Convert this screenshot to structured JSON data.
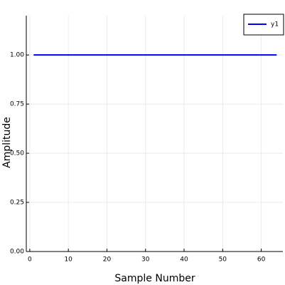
{
  "chart_data": {
    "type": "line",
    "x_label": "Sample Number",
    "y_label": "Amplitude",
    "x": [
      1,
      2,
      3,
      4,
      5,
      6,
      7,
      8,
      9,
      10,
      11,
      12,
      13,
      14,
      15,
      16,
      17,
      18,
      19,
      20,
      21,
      22,
      23,
      24,
      25,
      26,
      27,
      28,
      29,
      30,
      31,
      32,
      33,
      34,
      35,
      36,
      37,
      38,
      39,
      40,
      41,
      42,
      43,
      44,
      45,
      46,
      47,
      48,
      49,
      50,
      51,
      52,
      53,
      54,
      55,
      56,
      57,
      58,
      59,
      60,
      61,
      62,
      63,
      64
    ],
    "series": [
      {
        "name": "y1",
        "color": "#0000ff",
        "values": [
          1,
          1,
          1,
          1,
          1,
          1,
          1,
          1,
          1,
          1,
          1,
          1,
          1,
          1,
          1,
          1,
          1,
          1,
          1,
          1,
          1,
          1,
          1,
          1,
          1,
          1,
          1,
          1,
          1,
          1,
          1,
          1,
          1,
          1,
          1,
          1,
          1,
          1,
          1,
          1,
          1,
          1,
          1,
          1,
          1,
          1,
          1,
          1,
          1,
          1,
          1,
          1,
          1,
          1,
          1,
          1,
          1,
          1,
          1,
          1,
          1,
          1,
          1,
          1
        ]
      }
    ],
    "xlim": [
      -0.9,
      65.6
    ],
    "xticks": [
      0,
      10,
      20,
      30,
      40,
      50,
      60
    ],
    "ylim": [
      0,
      1.2
    ],
    "yticks": [
      {
        "value": 0,
        "label": "0.00"
      },
      {
        "value": 0.25,
        "label": "0.25"
      },
      {
        "value": 0.5,
        "label": "0.50"
      },
      {
        "value": 0.75,
        "label": "0.75"
      },
      {
        "value": 1,
        "label": "1.00"
      }
    ],
    "grid": true,
    "legend": "top-right"
  }
}
